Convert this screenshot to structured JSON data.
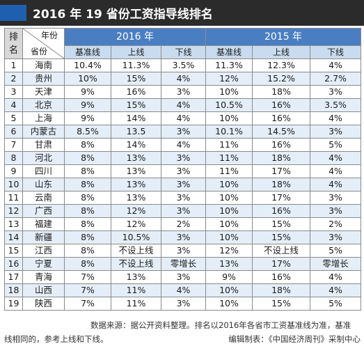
{
  "title": "2016 年 19 省份工资指导线排名",
  "header": {
    "rank_label": "排名",
    "corner_year": "年份",
    "corner_province": "省份",
    "year_2016": "2016 年",
    "year_2015": "2015 年",
    "col_base": "基准线",
    "col_upper": "上线",
    "col_lower": "下线"
  },
  "rows": [
    {
      "rank": "1",
      "province": "海南",
      "b16": "10.4%",
      "u16": "11.3%",
      "l16": "3.5%",
      "b15": "11.3%",
      "u15": "12.3%",
      "l15": "4%"
    },
    {
      "rank": "2",
      "province": "贵州",
      "b16": "10%",
      "u16": "15%",
      "l16": "4%",
      "b15": "12%",
      "u15": "15.2%",
      "l15": "2.7%"
    },
    {
      "rank": "3",
      "province": "天津",
      "b16": "9%",
      "u16": "16%",
      "l16": "3%",
      "b15": "10%",
      "u15": "18%",
      "l15": "3%"
    },
    {
      "rank": "4",
      "province": "北京",
      "b16": "9%",
      "u16": "15%",
      "l16": "4%",
      "b15": "10.5%",
      "u15": "16%",
      "l15": "3.5%"
    },
    {
      "rank": "5",
      "province": "上海",
      "b16": "9%",
      "u16": "14%",
      "l16": "4%",
      "b15": "10%",
      "u15": "16%",
      "l15": "4%"
    },
    {
      "rank": "6",
      "province": "内蒙古",
      "b16": "8.5%",
      "u16": "13.5",
      "l16": "3%",
      "b15": "10.1%",
      "u15": "14.5%",
      "l15": "3%"
    },
    {
      "rank": "7",
      "province": "甘肃",
      "b16": "8%",
      "u16": "14%",
      "l16": "4%",
      "b15": "11%",
      "u15": "16%",
      "l15": "5%"
    },
    {
      "rank": "8",
      "province": "河北",
      "b16": "8%",
      "u16": "13%",
      "l16": "3%",
      "b15": "11%",
      "u15": "18%",
      "l15": "4%"
    },
    {
      "rank": "9",
      "province": "四川",
      "b16": "8%",
      "u16": "13%",
      "l16": "3%",
      "b15": "11%",
      "u15": "17%",
      "l15": "4%"
    },
    {
      "rank": "10",
      "province": "山东",
      "b16": "8%",
      "u16": "13%",
      "l16": "3%",
      "b15": "10%",
      "u15": "18%",
      "l15": "4%"
    },
    {
      "rank": "11",
      "province": "云南",
      "b16": "8%",
      "u16": "13%",
      "l16": "3%",
      "b15": "10%",
      "u15": "17%",
      "l15": "3%"
    },
    {
      "rank": "12",
      "province": "广西",
      "b16": "8%",
      "u16": "12%",
      "l16": "3%",
      "b15": "10%",
      "u15": "16%",
      "l15": "3%"
    },
    {
      "rank": "13",
      "province": "福建",
      "b16": "8%",
      "u16": "12%",
      "l16": "2%",
      "b15": "10%",
      "u15": "15%",
      "l15": "2%"
    },
    {
      "rank": "14",
      "province": "新疆",
      "b16": "8%",
      "u16": "10.5%",
      "l16": "3%",
      "b15": "10%",
      "u15": "15%",
      "l15": "3%"
    },
    {
      "rank": "15",
      "province": "江西",
      "b16": "8%",
      "u16": "不设上线",
      "l16": "3%",
      "b15": "12%",
      "u15": "不设上线",
      "l15": "5%"
    },
    {
      "rank": "16",
      "province": "宁夏",
      "b16": "8%",
      "u16": "不设上线",
      "l16": "零增长",
      "b15": "13%",
      "u15": "17%",
      "l15": "零增长"
    },
    {
      "rank": "17",
      "province": "青海",
      "b16": "7%",
      "u16": "13%",
      "l16": "3%",
      "b15": "9%",
      "u15": "16%",
      "l15": "4%"
    },
    {
      "rank": "18",
      "province": "山西",
      "b16": "7%",
      "u16": "11%",
      "l16": "4%",
      "b15": "10%",
      "u15": "18%",
      "l15": "4%"
    },
    {
      "rank": "19",
      "province": "陕西",
      "b16": "7%",
      "u16": "11%",
      "l16": "3%",
      "b15": "10%",
      "u15": "15%",
      "l15": "5%"
    }
  ],
  "footer": {
    "source_line1": "数据来源：据公开资料整理。排名以2016年各省市工资基准线为准，基准",
    "source_line2": "线相同的，参考上线和下线。",
    "credit": "编辑制表：《中国经济周刊》采制中心"
  },
  "colors": {
    "title_bar": "#2b2b2b",
    "accent": "#1f5fb0",
    "year_header": "#4a7ec2",
    "sub_header": "#c9dcef",
    "row_alt": "#e4eef8"
  }
}
